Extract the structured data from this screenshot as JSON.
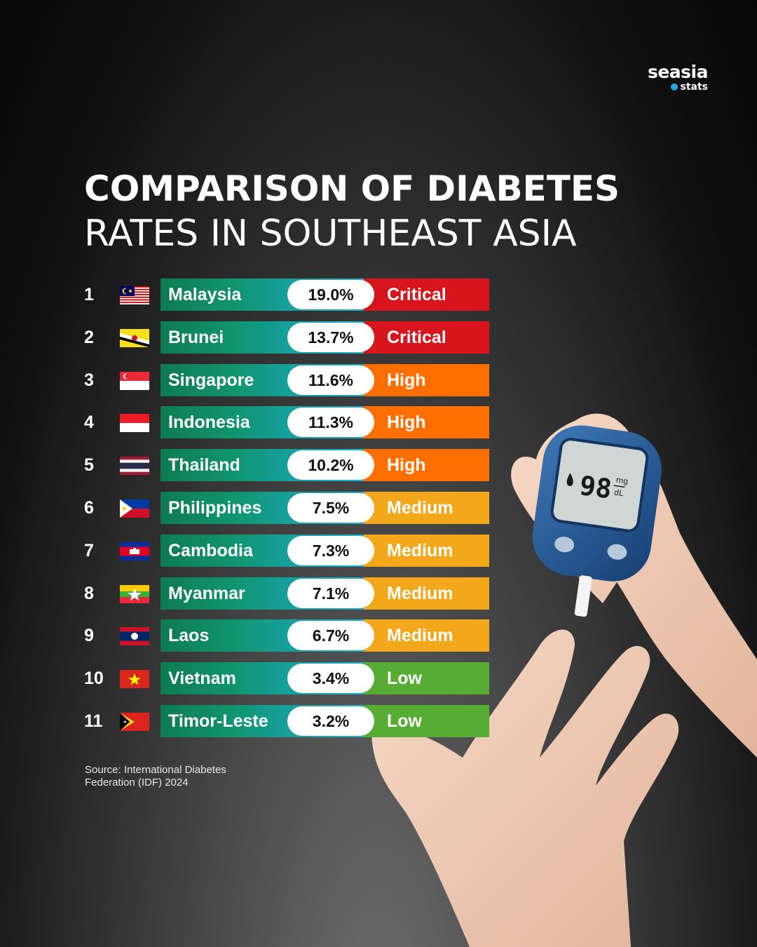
{
  "brand": {
    "name": "seasia",
    "sub": "stats",
    "accent": "#27a6de"
  },
  "title": {
    "line1": "COMPARISON OF DIABETES",
    "line2": "RATES IN SOUTHEAST ASIA"
  },
  "source": {
    "line1": "Source: International Diabetes",
    "line2": "Federation (IDF) 2024"
  },
  "meter": {
    "reading": "98",
    "unit_top": "mg",
    "unit_bottom": "dL"
  },
  "level_colors": {
    "Critical": "#d8141c",
    "High": "#ff6f00",
    "Medium": "#f2a81a",
    "Low": "#57ad33"
  },
  "chart_data": {
    "type": "table",
    "title": "COMPARISON OF DIABETES RATES IN SOUTHEAST ASIA",
    "unit": "%",
    "rows": [
      {
        "rank": "1",
        "country": "Malaysia",
        "value": 19.0,
        "label": "19.0%",
        "level": "Critical",
        "flag": "malaysia-flag"
      },
      {
        "rank": "2",
        "country": "Brunei",
        "value": 13.7,
        "label": "13.7%",
        "level": "Critical",
        "flag": "brunei-flag"
      },
      {
        "rank": "3",
        "country": "Singapore",
        "value": 11.6,
        "label": "11.6%",
        "level": "High",
        "flag": "singapore-flag"
      },
      {
        "rank": "4",
        "country": "Indonesia",
        "value": 11.3,
        "label": "11.3%",
        "level": "High",
        "flag": "indonesia-flag"
      },
      {
        "rank": "5",
        "country": "Thailand",
        "value": 10.2,
        "label": "10.2%",
        "level": "High",
        "flag": "thailand-flag"
      },
      {
        "rank": "6",
        "country": "Philippines",
        "value": 7.5,
        "label": "7.5%",
        "level": "Medium",
        "flag": "philippines-flag"
      },
      {
        "rank": "7",
        "country": "Cambodia",
        "value": 7.3,
        "label": "7.3%",
        "level": "Medium",
        "flag": "cambodia-flag"
      },
      {
        "rank": "8",
        "country": "Myanmar",
        "value": 7.1,
        "label": "7.1%",
        "level": "Medium",
        "flag": "myanmar-flag"
      },
      {
        "rank": "9",
        "country": "Laos",
        "value": 6.7,
        "label": "6.7%",
        "level": "Medium",
        "flag": "laos-flag"
      },
      {
        "rank": "10",
        "country": "Vietnam",
        "value": 3.4,
        "label": "3.4%",
        "level": "Low",
        "flag": "vietnam-flag"
      },
      {
        "rank": "11",
        "country": "Timor-Leste",
        "value": 3.2,
        "label": "3.2%",
        "level": "Low",
        "flag": "timor-leste-flag"
      }
    ]
  }
}
